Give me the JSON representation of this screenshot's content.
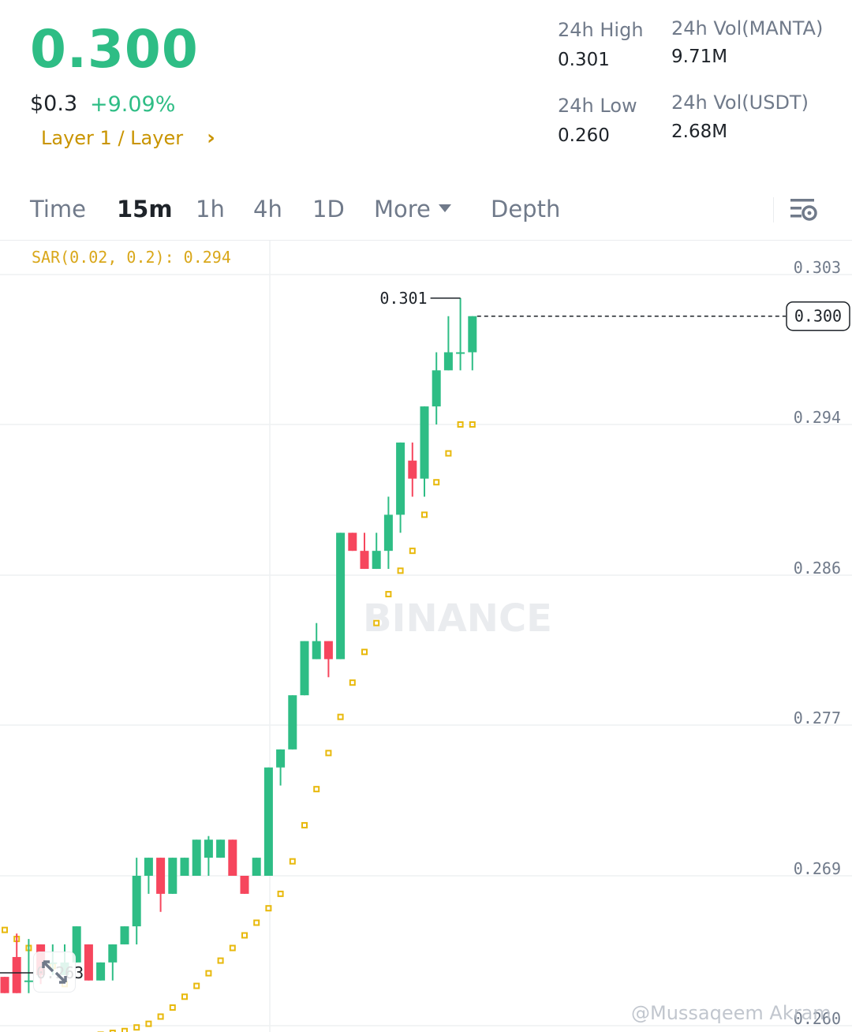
{
  "header": {
    "last_price": "0.300",
    "usd_price": "$0.3",
    "change_pct": "+9.09%",
    "tag": "Layer 1 / Layer",
    "stats": {
      "high_label": "24h High",
      "high_value": "0.301",
      "low_label": "24h Low",
      "low_value": "0.260",
      "vol_base_label": "24h Vol(MANTA)",
      "vol_base_value": "9.71M",
      "vol_quote_label": "24h Vol(USDT)",
      "vol_quote_value": "2.68M"
    }
  },
  "tabs": {
    "time": "Time",
    "m15": "15m",
    "h1": "1h",
    "h4": "4h",
    "d1": "1D",
    "more": "More",
    "depth": "Depth",
    "active": "15m"
  },
  "indicator": {
    "label": "SAR(0.02, 0.2): 0.294"
  },
  "colors": {
    "up": "#2ebd85",
    "down": "#f6465d",
    "sar": "#e8b90c",
    "accent": "#c99400"
  },
  "watermark": {
    "brand": "BINANCE",
    "credit": "@Mussaqeem Akram"
  },
  "chart_data": {
    "type": "candlestick",
    "price_axis_ticks": [
      "0.303",
      "0.294",
      "0.286",
      "0.277",
      "0.269",
      "0.260"
    ],
    "ylim": [
      0.2598,
      0.3035
    ],
    "current_price_label": "0.300",
    "high_marker_label": "0.301",
    "low_marker_label": "0.263",
    "candles": [
      {
        "o": 0.2634,
        "h": 0.2634,
        "l": 0.2625,
        "c": 0.2625
      },
      {
        "o": 0.2645,
        "h": 0.2658,
        "l": 0.2625,
        "c": 0.2625
      },
      {
        "o": 0.2632,
        "h": 0.2655,
        "l": 0.2625,
        "c": 0.2632
      },
      {
        "o": 0.2652,
        "h": 0.2652,
        "l": 0.263,
        "c": 0.2635
      },
      {
        "o": 0.2642,
        "h": 0.2652,
        "l": 0.2635,
        "c": 0.2642
      },
      {
        "o": 0.2635,
        "h": 0.2652,
        "l": 0.2635,
        "c": 0.2642
      },
      {
        "o": 0.2642,
        "h": 0.2662,
        "l": 0.2642,
        "c": 0.2662
      },
      {
        "o": 0.2652,
        "h": 0.2652,
        "l": 0.2632,
        "c": 0.2632
      },
      {
        "o": 0.2632,
        "h": 0.2642,
        "l": 0.2632,
        "c": 0.2642
      },
      {
        "o": 0.2642,
        "h": 0.2652,
        "l": 0.2632,
        "c": 0.2652
      },
      {
        "o": 0.2652,
        "h": 0.2662,
        "l": 0.2652,
        "c": 0.2662
      },
      {
        "o": 0.2662,
        "h": 0.27,
        "l": 0.2652,
        "c": 0.269
      },
      {
        "o": 0.269,
        "h": 0.27,
        "l": 0.268,
        "c": 0.27
      },
      {
        "o": 0.27,
        "h": 0.27,
        "l": 0.267,
        "c": 0.268
      },
      {
        "o": 0.268,
        "h": 0.27,
        "l": 0.268,
        "c": 0.27
      },
      {
        "o": 0.269,
        "h": 0.27,
        "l": 0.269,
        "c": 0.27
      },
      {
        "o": 0.269,
        "h": 0.271,
        "l": 0.269,
        "c": 0.271
      },
      {
        "o": 0.27,
        "h": 0.2712,
        "l": 0.269,
        "c": 0.271
      },
      {
        "o": 0.27,
        "h": 0.271,
        "l": 0.27,
        "c": 0.271
      },
      {
        "o": 0.271,
        "h": 0.271,
        "l": 0.269,
        "c": 0.269
      },
      {
        "o": 0.269,
        "h": 0.269,
        "l": 0.268,
        "c": 0.268
      },
      {
        "o": 0.269,
        "h": 0.27,
        "l": 0.269,
        "c": 0.27
      },
      {
        "o": 0.269,
        "h": 0.275,
        "l": 0.269,
        "c": 0.275
      },
      {
        "o": 0.275,
        "h": 0.276,
        "l": 0.274,
        "c": 0.276
      },
      {
        "o": 0.276,
        "h": 0.279,
        "l": 0.276,
        "c": 0.279
      },
      {
        "o": 0.279,
        "h": 0.282,
        "l": 0.279,
        "c": 0.282
      },
      {
        "o": 0.281,
        "h": 0.283,
        "l": 0.281,
        "c": 0.282
      },
      {
        "o": 0.282,
        "h": 0.282,
        "l": 0.28,
        "c": 0.281
      },
      {
        "o": 0.281,
        "h": 0.288,
        "l": 0.281,
        "c": 0.288
      },
      {
        "o": 0.288,
        "h": 0.288,
        "l": 0.287,
        "c": 0.287
      },
      {
        "o": 0.287,
        "h": 0.288,
        "l": 0.286,
        "c": 0.286
      },
      {
        "o": 0.286,
        "h": 0.288,
        "l": 0.286,
        "c": 0.287
      },
      {
        "o": 0.287,
        "h": 0.29,
        "l": 0.286,
        "c": 0.289
      },
      {
        "o": 0.289,
        "h": 0.293,
        "l": 0.288,
        "c": 0.293
      },
      {
        "o": 0.292,
        "h": 0.293,
        "l": 0.29,
        "c": 0.291
      },
      {
        "o": 0.291,
        "h": 0.295,
        "l": 0.29,
        "c": 0.295
      },
      {
        "o": 0.295,
        "h": 0.298,
        "l": 0.294,
        "c": 0.297
      },
      {
        "o": 0.297,
        "h": 0.3,
        "l": 0.297,
        "c": 0.298
      },
      {
        "o": 0.298,
        "h": 0.301,
        "l": 0.297,
        "c": 0.298
      },
      {
        "o": 0.298,
        "h": 0.3,
        "l": 0.297,
        "c": 0.3
      }
    ],
    "sar": [
      0.266,
      0.2655,
      0.265,
      0.2645,
      0.264,
      0.263,
      0.26,
      0.2601,
      0.2602,
      0.2603,
      0.2604,
      0.2606,
      0.2608,
      0.2612,
      0.2617,
      0.2623,
      0.2629,
      0.2636,
      0.2643,
      0.265,
      0.2657,
      0.2664,
      0.2672,
      0.268,
      0.2698,
      0.2718,
      0.2738,
      0.2758,
      0.2778,
      0.2797,
      0.2814,
      0.283,
      0.2846,
      0.2859,
      0.287,
      0.289,
      0.2908,
      0.2924,
      0.294,
      0.294
    ]
  }
}
